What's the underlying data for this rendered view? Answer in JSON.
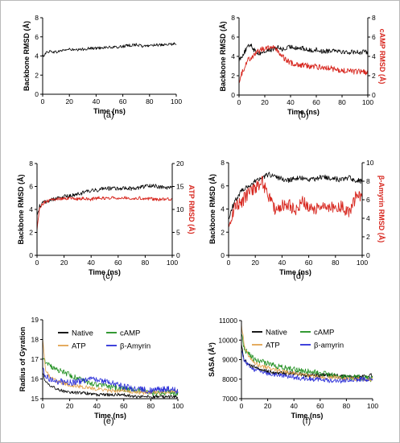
{
  "chart_data": [
    {
      "type": "line",
      "panel_label": "(a)",
      "xlabel": "Time (ns)",
      "ylabel": "Backbone RMSD (Å)",
      "xlim": [
        0,
        100
      ],
      "ylim": [
        0,
        8
      ],
      "xticks": [
        0,
        20,
        40,
        60,
        80,
        100
      ],
      "yticks": [
        0,
        2,
        4,
        6,
        8
      ],
      "series": [
        {
          "color": "#000000",
          "x": [
            0,
            2,
            5,
            10,
            15,
            20,
            25,
            30,
            35,
            40,
            45,
            50,
            55,
            60,
            65,
            70,
            75,
            80,
            85,
            90,
            95,
            100
          ],
          "y": [
            3.9,
            4.3,
            4.5,
            4.4,
            4.6,
            4.7,
            4.6,
            4.7,
            4.8,
            4.8,
            4.9,
            4.9,
            4.9,
            5.0,
            5.1,
            5.2,
            5.0,
            5.1,
            5.2,
            5.1,
            5.2,
            5.3
          ],
          "noise": 0.15
        }
      ]
    },
    {
      "type": "line",
      "panel_label": "(b)",
      "xlabel": "Time (ns)",
      "ylabel": "Backbone RMSD (Å)",
      "y2label": "cAMP RMSD (Å)",
      "xlim": [
        0,
        100
      ],
      "ylim": [
        0,
        8
      ],
      "y2lim": [
        0,
        8
      ],
      "xticks": [
        0,
        20,
        40,
        60,
        80,
        100
      ],
      "yticks": [
        0,
        2,
        4,
        6,
        8
      ],
      "y2ticks": [
        0,
        2,
        4,
        6,
        8
      ],
      "series": [
        {
          "color": "#000000",
          "axis": "left",
          "x": [
            0,
            3,
            6,
            9,
            12,
            15,
            20,
            25,
            30,
            35,
            40,
            45,
            50,
            55,
            60,
            65,
            70,
            75,
            80,
            85,
            90,
            95,
            100
          ],
          "y": [
            3.6,
            4.2,
            4.8,
            5.3,
            4.6,
            4.3,
            4.5,
            4.7,
            4.9,
            4.7,
            5.0,
            4.9,
            4.8,
            4.6,
            4.7,
            4.5,
            4.6,
            4.7,
            4.5,
            4.4,
            4.5,
            4.4,
            4.5
          ],
          "noise": 0.25
        },
        {
          "color": "#d7261e",
          "axis": "right",
          "x": [
            0,
            3,
            6,
            10,
            15,
            20,
            25,
            30,
            35,
            40,
            45,
            50,
            55,
            60,
            65,
            70,
            75,
            80,
            85,
            90,
            95,
            100
          ],
          "y": [
            1.5,
            2.5,
            3.5,
            4.0,
            4.5,
            4.9,
            5.0,
            4.6,
            3.8,
            3.3,
            3.2,
            3.1,
            3.0,
            2.9,
            2.9,
            2.8,
            2.6,
            2.5,
            2.5,
            2.4,
            2.4,
            2.3
          ],
          "noise": 0.3
        }
      ]
    },
    {
      "type": "line",
      "panel_label": "(c)",
      "xlabel": "Time (ns)",
      "ylabel": "Backbone RMSD (Å)",
      "y2label": "ATP RMSD (Å)",
      "xlim": [
        0,
        100
      ],
      "ylim": [
        0,
        8
      ],
      "y2lim": [
        0,
        20
      ],
      "xticks": [
        0,
        20,
        40,
        60,
        80,
        100
      ],
      "yticks": [
        0,
        2,
        4,
        6,
        8
      ],
      "y2ticks": [
        0,
        5,
        10,
        15,
        20
      ],
      "series": [
        {
          "color": "#000000",
          "axis": "left",
          "x": [
            0,
            2,
            5,
            10,
            15,
            20,
            25,
            30,
            35,
            40,
            45,
            50,
            55,
            60,
            65,
            70,
            75,
            80,
            85,
            90,
            95,
            100
          ],
          "y": [
            3.5,
            4.3,
            4.6,
            4.8,
            5.0,
            5.1,
            5.2,
            5.3,
            5.5,
            5.6,
            5.7,
            5.9,
            5.8,
            5.8,
            5.9,
            5.8,
            5.9,
            6.0,
            6.1,
            6.0,
            5.9,
            5.9
          ],
          "noise": 0.18
        },
        {
          "color": "#d7261e",
          "axis": "right",
          "x": [
            0,
            2,
            5,
            10,
            15,
            20,
            25,
            30,
            35,
            40,
            45,
            50,
            55,
            60,
            65,
            70,
            75,
            80,
            85,
            90,
            95,
            100
          ],
          "y": [
            5.5,
            10.5,
            11.5,
            12.0,
            12.3,
            12.3,
            12.4,
            12.3,
            12.4,
            12.2,
            12.5,
            12.4,
            12.6,
            12.5,
            12.6,
            12.4,
            12.5,
            12.4,
            12.3,
            12.2,
            12.3,
            12.3
          ],
          "noise": 0.35
        }
      ]
    },
    {
      "type": "line",
      "panel_label": "(d)",
      "xlabel": "Time (ns)",
      "ylabel": "Backbone RMSD (Å)",
      "y2label": "β-Amyrin RMSD (Å)",
      "xlim": [
        0,
        100
      ],
      "ylim": [
        0,
        8
      ],
      "y2lim": [
        0,
        10
      ],
      "xticks": [
        0,
        20,
        40,
        60,
        80,
        100
      ],
      "yticks": [
        0,
        2,
        4,
        6,
        8
      ],
      "y2ticks": [
        0,
        2,
        4,
        6,
        8,
        10
      ],
      "series": [
        {
          "color": "#000000",
          "axis": "left",
          "x": [
            0,
            3,
            6,
            10,
            15,
            20,
            25,
            30,
            35,
            40,
            45,
            50,
            55,
            60,
            65,
            70,
            75,
            80,
            85,
            90,
            95,
            100
          ],
          "y": [
            3.2,
            4.2,
            5.0,
            5.6,
            6.0,
            6.4,
            6.7,
            7.0,
            6.8,
            6.6,
            6.5,
            6.6,
            6.7,
            6.5,
            6.6,
            6.8,
            6.7,
            6.6,
            6.5,
            6.7,
            6.5,
            6.4
          ],
          "noise": 0.22
        },
        {
          "color": "#d7261e",
          "axis": "right",
          "x": [
            0,
            3,
            6,
            10,
            15,
            20,
            25,
            30,
            35,
            40,
            45,
            50,
            55,
            60,
            65,
            70,
            75,
            80,
            85,
            90,
            95,
            100
          ],
          "y": [
            3.0,
            4.5,
            5.5,
            5.8,
            6.8,
            7.3,
            8.0,
            6.5,
            5.0,
            5.3,
            5.5,
            4.8,
            5.8,
            5.2,
            5.0,
            5.6,
            5.4,
            4.8,
            5.3,
            4.6,
            6.2,
            6.6
          ],
          "noise": 0.7
        }
      ]
    },
    {
      "type": "line",
      "panel_label": "(e)",
      "xlabel": "Time (ns)",
      "ylabel": "Radius of Gyration",
      "xlim": [
        0,
        100
      ],
      "ylim": [
        15,
        19
      ],
      "xticks": [
        0,
        20,
        40,
        60,
        80,
        100
      ],
      "yticks": [
        15,
        16,
        17,
        18,
        19
      ],
      "legend": [
        "Native",
        "cAMP",
        "ATP",
        "β-Amyrin"
      ],
      "series": [
        {
          "name": "Native",
          "color": "#000000",
          "x": [
            0,
            2,
            5,
            10,
            20,
            30,
            40,
            50,
            60,
            70,
            80,
            90,
            100
          ],
          "y": [
            16.3,
            15.9,
            15.7,
            15.5,
            15.3,
            15.3,
            15.2,
            15.2,
            15.2,
            15.1,
            15.1,
            15.1,
            15.1
          ],
          "noise": 0.08
        },
        {
          "name": "cAMP",
          "color": "#1e8e1e",
          "x": [
            0,
            2,
            5,
            10,
            20,
            30,
            40,
            50,
            60,
            70,
            80,
            90,
            100
          ],
          "y": [
            17.2,
            16.9,
            16.7,
            16.5,
            16.2,
            15.9,
            15.7,
            15.6,
            15.5,
            15.4,
            15.3,
            15.3,
            15.3
          ],
          "noise": 0.15
        },
        {
          "name": "ATP",
          "color": "#e2a24e",
          "x": [
            0,
            2,
            5,
            10,
            20,
            30,
            40,
            50,
            60,
            70,
            80,
            90,
            100
          ],
          "y": [
            18.1,
            16.5,
            16.1,
            15.9,
            15.7,
            15.6,
            15.5,
            15.4,
            15.4,
            15.3,
            15.3,
            15.3,
            15.4
          ],
          "noise": 0.1
        },
        {
          "name": "β-Amyrin",
          "color": "#2a2ed8",
          "x": [
            0,
            2,
            5,
            10,
            20,
            30,
            40,
            50,
            60,
            70,
            80,
            90,
            100
          ],
          "y": [
            16.5,
            16.2,
            16.0,
            15.9,
            15.8,
            15.9,
            16.0,
            15.8,
            15.6,
            15.5,
            15.4,
            15.5,
            15.4
          ],
          "noise": 0.16
        }
      ]
    },
    {
      "type": "line",
      "panel_label": "(f)",
      "xlabel": "Time (ns)",
      "ylabel": "SASA (Å²)",
      "xlim": [
        0,
        100
      ],
      "ylim": [
        7000,
        11000
      ],
      "xticks": [
        0,
        20,
        40,
        60,
        80,
        100
      ],
      "yticks": [
        7000,
        8000,
        9000,
        10000,
        11000
      ],
      "legend": [
        "Native",
        "cAMP",
        "ATP",
        "β-amyrin"
      ],
      "series": [
        {
          "name": "Native",
          "color": "#000000",
          "x": [
            0,
            2,
            5,
            10,
            20,
            30,
            40,
            50,
            60,
            70,
            80,
            90,
            100
          ],
          "y": [
            9800,
            9000,
            8800,
            8600,
            8400,
            8300,
            8300,
            8200,
            8200,
            8200,
            8100,
            8100,
            8200
          ],
          "noise": 110
        },
        {
          "name": "cAMP",
          "color": "#1e8e1e",
          "x": [
            0,
            2,
            5,
            10,
            20,
            30,
            40,
            50,
            60,
            70,
            80,
            90,
            100
          ],
          "y": [
            10300,
            9600,
            9300,
            9000,
            8800,
            8600,
            8500,
            8400,
            8300,
            8200,
            8100,
            8100,
            8000
          ],
          "noise": 150
        },
        {
          "name": "ATP",
          "color": "#e2a24e",
          "x": [
            0,
            2,
            5,
            10,
            20,
            30,
            40,
            50,
            60,
            70,
            80,
            90,
            100
          ],
          "y": [
            10800,
            9800,
            9200,
            8800,
            8600,
            8400,
            8300,
            8200,
            8100,
            8100,
            8000,
            8000,
            8000
          ],
          "noise": 110
        },
        {
          "name": "β-amyrin",
          "color": "#2a2ed8",
          "x": [
            0,
            2,
            5,
            10,
            20,
            30,
            40,
            50,
            60,
            70,
            80,
            90,
            100
          ],
          "y": [
            9500,
            9000,
            8700,
            8500,
            8300,
            8200,
            8100,
            8000,
            8000,
            7900,
            7900,
            8000,
            8000
          ],
          "noise": 120
        }
      ]
    }
  ]
}
